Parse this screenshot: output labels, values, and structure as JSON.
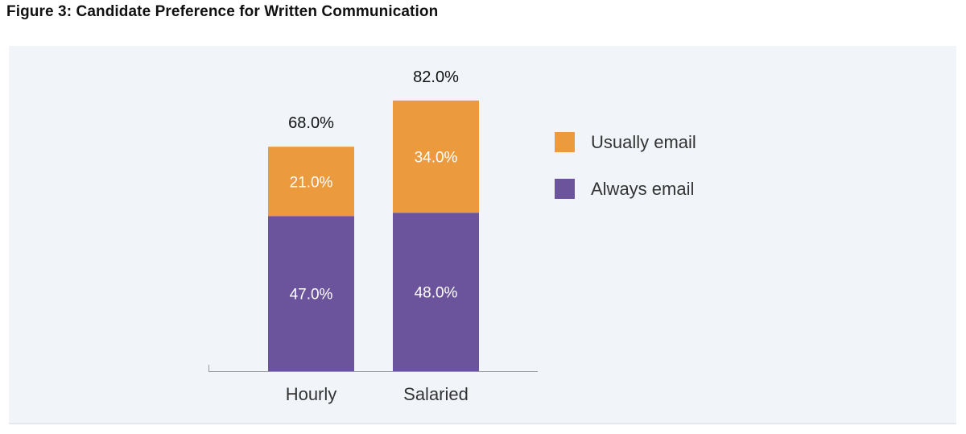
{
  "figure": {
    "title": "Figure 3: Candidate Preference for Written Communication"
  },
  "colors": {
    "panel_background": "#f1f4f9",
    "usually_email": "#ec9a3e",
    "always_email": "#6b549c",
    "axis": "#999999"
  },
  "chart_data": {
    "type": "bar",
    "stacked": true,
    "title": "Figure 3: Candidate Preference for Written Communication",
    "xlabel": "",
    "ylabel": "",
    "ylim": [
      0,
      100
    ],
    "grid": false,
    "legend_position": "right",
    "categories": [
      "Hourly",
      "Salaried"
    ],
    "series": [
      {
        "name": "Always email",
        "color": "#6b549c",
        "values": [
          47.0,
          48.0
        ],
        "labels": [
          "47.0%",
          "48.0%"
        ]
      },
      {
        "name": "Usually email",
        "color": "#ec9a3e",
        "values": [
          21.0,
          34.0
        ],
        "labels": [
          "21.0%",
          "34.0%"
        ]
      }
    ],
    "totals": [
      68.0,
      82.0
    ],
    "total_labels": [
      "68.0%",
      "82.0%"
    ],
    "legend": [
      {
        "name": "Usually email",
        "color": "#ec9a3e"
      },
      {
        "name": "Always email",
        "color": "#6b549c"
      }
    ]
  }
}
